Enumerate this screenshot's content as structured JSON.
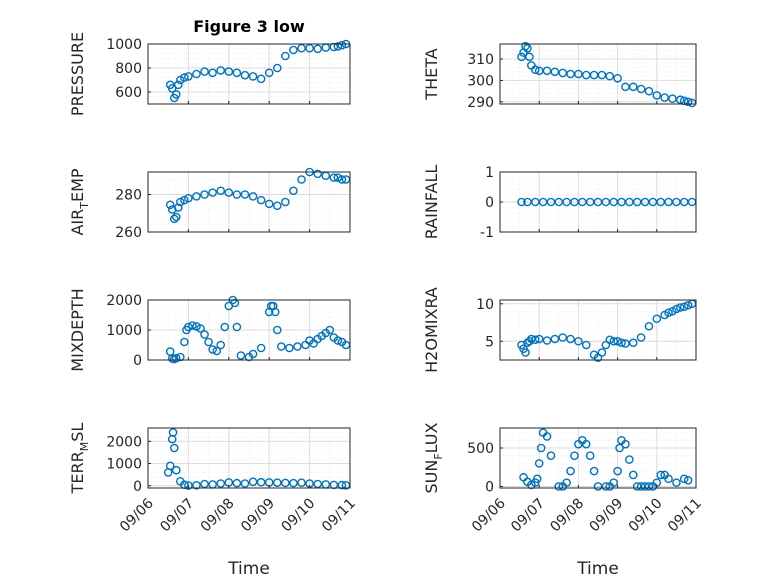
{
  "title": "Figure 3 low",
  "colors": {
    "marker": "#0072BD",
    "axis": "#262626",
    "grid": "#dcdcdc",
    "minor_grid": "#ececec"
  },
  "chart_data": [
    {
      "type": "scatter",
      "title": "Figure 3 low",
      "ylabel": "PRESSURE",
      "ylim": [
        500,
        1000
      ],
      "yticks": [
        600,
        800,
        1000
      ],
      "ytick_labels": [
        "600",
        "800",
        "1000"
      ],
      "xlim": [
        0,
        5
      ],
      "grid": true,
      "show_xticklabels": false,
      "x": [
        0.55,
        0.6,
        0.65,
        0.7,
        0.75,
        0.8,
        0.9,
        1.0,
        1.2,
        1.4,
        1.6,
        1.8,
        2.0,
        2.2,
        2.4,
        2.6,
        2.8,
        3.0,
        3.2,
        3.4,
        3.6,
        3.8,
        4.0,
        4.2,
        4.4,
        4.6,
        4.7,
        4.8,
        4.9
      ],
      "y": [
        660,
        630,
        550,
        580,
        660,
        700,
        720,
        730,
        750,
        770,
        760,
        780,
        770,
        760,
        740,
        730,
        710,
        760,
        800,
        900,
        950,
        965,
        965,
        960,
        970,
        975,
        980,
        990,
        1000
      ]
    },
    {
      "type": "scatter",
      "ylabel": "THETA",
      "ylim": [
        289,
        317
      ],
      "yticks": [
        290,
        300,
        310
      ],
      "ytick_labels": [
        "290",
        "300",
        "310"
      ],
      "xlim": [
        0,
        5
      ],
      "grid": true,
      "show_xticklabels": false,
      "x": [
        0.55,
        0.6,
        0.65,
        0.7,
        0.75,
        0.8,
        0.9,
        1.0,
        1.2,
        1.4,
        1.6,
        1.8,
        2.0,
        2.2,
        2.4,
        2.6,
        2.8,
        3.0,
        3.2,
        3.4,
        3.6,
        3.8,
        4.0,
        4.2,
        4.4,
        4.6,
        4.7,
        4.8,
        4.9
      ],
      "y": [
        311,
        313,
        316,
        315,
        311,
        307,
        305,
        304.5,
        304.5,
        304,
        303.5,
        303,
        303,
        302.5,
        302.5,
        302.5,
        302,
        301,
        297,
        297,
        296,
        295,
        293,
        292,
        291.5,
        291,
        290.5,
        290,
        289.5
      ]
    },
    {
      "type": "scatter",
      "ylabel": "AIR_TEMP",
      "ylim": [
        260,
        292
      ],
      "yticks": [
        260,
        280
      ],
      "ytick_labels": [
        "260",
        "280"
      ],
      "xlim": [
        0,
        5
      ],
      "grid": true,
      "show_xticklabels": false,
      "x": [
        0.55,
        0.6,
        0.65,
        0.7,
        0.75,
        0.8,
        0.9,
        1.0,
        1.2,
        1.4,
        1.6,
        1.8,
        2.0,
        2.2,
        2.4,
        2.6,
        2.8,
        3.0,
        3.2,
        3.4,
        3.6,
        3.8,
        4.0,
        4.2,
        4.4,
        4.6,
        4.7,
        4.8,
        4.9
      ],
      "y": [
        274.5,
        272,
        267,
        268,
        273,
        276,
        277,
        278,
        279,
        280,
        281,
        282,
        281,
        280,
        280,
        279,
        277,
        275,
        274,
        276,
        282,
        288,
        292,
        291,
        290,
        289,
        289,
        288,
        288
      ]
    },
    {
      "type": "scatter",
      "ylabel": "RAINFALL",
      "ylim": [
        -1,
        1
      ],
      "yticks": [
        -1,
        0,
        1
      ],
      "ytick_labels": [
        "-1",
        "0",
        "1"
      ],
      "xlim": [
        0,
        5
      ],
      "grid": true,
      "show_xticklabels": false,
      "x": [
        0.55,
        0.7,
        0.9,
        1.1,
        1.3,
        1.5,
        1.7,
        1.9,
        2.1,
        2.3,
        2.5,
        2.7,
        2.9,
        3.1,
        3.3,
        3.5,
        3.7,
        3.9,
        4.1,
        4.3,
        4.5,
        4.7,
        4.9
      ],
      "y": [
        0,
        0,
        0,
        0,
        0,
        0,
        0,
        0,
        0,
        0,
        0,
        0,
        0,
        0,
        0,
        0,
        0,
        0,
        0,
        0,
        0,
        0,
        0
      ]
    },
    {
      "type": "scatter",
      "ylabel": "MIXDEPTH",
      "ylim": [
        0,
        2000
      ],
      "yticks": [
        0,
        1000,
        2000
      ],
      "ytick_labels": [
        "0",
        "1000",
        "2000"
      ],
      "xlim": [
        0,
        5
      ],
      "grid": true,
      "show_xticklabels": false,
      "x": [
        0.55,
        0.6,
        0.65,
        0.7,
        0.8,
        0.9,
        0.95,
        1.0,
        1.1,
        1.2,
        1.3,
        1.4,
        1.5,
        1.6,
        1.7,
        1.8,
        1.9,
        2.0,
        2.1,
        2.15,
        2.2,
        2.3,
        2.5,
        2.6,
        2.8,
        3.0,
        3.05,
        3.1,
        3.15,
        3.2,
        3.3,
        3.5,
        3.7,
        3.9,
        4.0,
        4.1,
        4.2,
        4.3,
        4.4,
        4.5,
        4.6,
        4.7,
        4.8,
        4.9
      ],
      "y": [
        280,
        50,
        30,
        60,
        100,
        600,
        1000,
        1100,
        1150,
        1120,
        1050,
        850,
        600,
        350,
        300,
        500,
        1100,
        1800,
        2000,
        1900,
        1100,
        150,
        100,
        200,
        400,
        1600,
        1800,
        1800,
        1600,
        1000,
        450,
        400,
        450,
        500,
        650,
        550,
        700,
        800,
        900,
        1000,
        750,
        650,
        600,
        500
      ]
    },
    {
      "type": "scatter",
      "ylabel": "H2OMIXRA",
      "ylim": [
        2.5,
        10.5
      ],
      "yticks": [
        5,
        10
      ],
      "ytick_labels": [
        "5",
        "10"
      ],
      "xlim": [
        0,
        5
      ],
      "grid": true,
      "show_xticklabels": false,
      "x": [
        0.55,
        0.6,
        0.65,
        0.7,
        0.75,
        0.8,
        0.9,
        1.0,
        1.2,
        1.4,
        1.6,
        1.8,
        2.0,
        2.2,
        2.4,
        2.5,
        2.6,
        2.7,
        2.8,
        2.9,
        3.0,
        3.1,
        3.2,
        3.4,
        3.6,
        3.8,
        4.0,
        4.2,
        4.3,
        4.4,
        4.5,
        4.6,
        4.7,
        4.8,
        4.9
      ],
      "y": [
        4.5,
        4.0,
        3.5,
        4.8,
        5.0,
        5.3,
        5.2,
        5.3,
        5.1,
        5.3,
        5.5,
        5.3,
        5.0,
        4.5,
        3.2,
        2.8,
        3.5,
        4.5,
        5.2,
        5.0,
        5.0,
        4.8,
        4.7,
        4.8,
        5.5,
        7.0,
        8.0,
        8.5,
        8.8,
        9.0,
        9.3,
        9.5,
        9.6,
        9.8,
        10.0
      ]
    },
    {
      "type": "scatter",
      "ylabel": "TERR_MSL",
      "ylim": [
        -100,
        2600
      ],
      "yticks": [
        0,
        1000,
        2000
      ],
      "ytick_labels": [
        "0",
        "1000",
        "2000"
      ],
      "xlim": [
        0,
        5
      ],
      "grid": true,
      "xticks": [
        0,
        1,
        2,
        3,
        4,
        5
      ],
      "xtick_labels": [
        "09/06",
        "09/07",
        "09/08",
        "09/09",
        "09/10",
        "09/11"
      ],
      "xlabel": "Time",
      "x": [
        0.5,
        0.55,
        0.6,
        0.62,
        0.65,
        0.7,
        0.8,
        0.9,
        1.0,
        1.2,
        1.4,
        1.6,
        1.8,
        2.0,
        2.2,
        2.4,
        2.6,
        2.8,
        3.0,
        3.2,
        3.4,
        3.6,
        3.8,
        4.0,
        4.2,
        4.4,
        4.6,
        4.8,
        4.9
      ],
      "y": [
        600,
        900,
        2100,
        2400,
        1700,
        700,
        200,
        50,
        10,
        20,
        80,
        60,
        100,
        150,
        120,
        100,
        180,
        160,
        150,
        140,
        130,
        120,
        140,
        100,
        80,
        60,
        40,
        30,
        20
      ]
    },
    {
      "type": "scatter",
      "ylabel": "SUN_FLUX",
      "ylim": [
        -20,
        760
      ],
      "yticks": [
        0,
        500
      ],
      "ytick_labels": [
        "0",
        "500"
      ],
      "xlim": [
        0,
        5
      ],
      "grid": true,
      "xticks": [
        0,
        1,
        2,
        3,
        4,
        5
      ],
      "xtick_labels": [
        "09/06",
        "09/07",
        "09/08",
        "09/09",
        "09/10",
        "09/11"
      ],
      "xlabel": "Time",
      "x": [
        0.6,
        0.7,
        0.8,
        0.9,
        0.95,
        1.0,
        1.05,
        1.1,
        1.2,
        1.3,
        1.5,
        1.6,
        1.7,
        1.8,
        1.9,
        2.0,
        2.1,
        2.2,
        2.3,
        2.4,
        2.5,
        2.7,
        2.8,
        2.9,
        3.0,
        3.05,
        3.1,
        3.2,
        3.3,
        3.4,
        3.5,
        3.6,
        3.7,
        3.8,
        3.9,
        4.0,
        4.1,
        4.2,
        4.3,
        4.5,
        4.7,
        4.8
      ],
      "y": [
        120,
        60,
        20,
        50,
        100,
        300,
        500,
        700,
        650,
        400,
        0,
        0,
        50,
        200,
        400,
        550,
        600,
        550,
        400,
        200,
        0,
        0,
        0,
        50,
        200,
        500,
        600,
        550,
        350,
        150,
        0,
        0,
        0,
        0,
        0,
        50,
        150,
        150,
        100,
        50,
        100,
        80
      ]
    }
  ]
}
